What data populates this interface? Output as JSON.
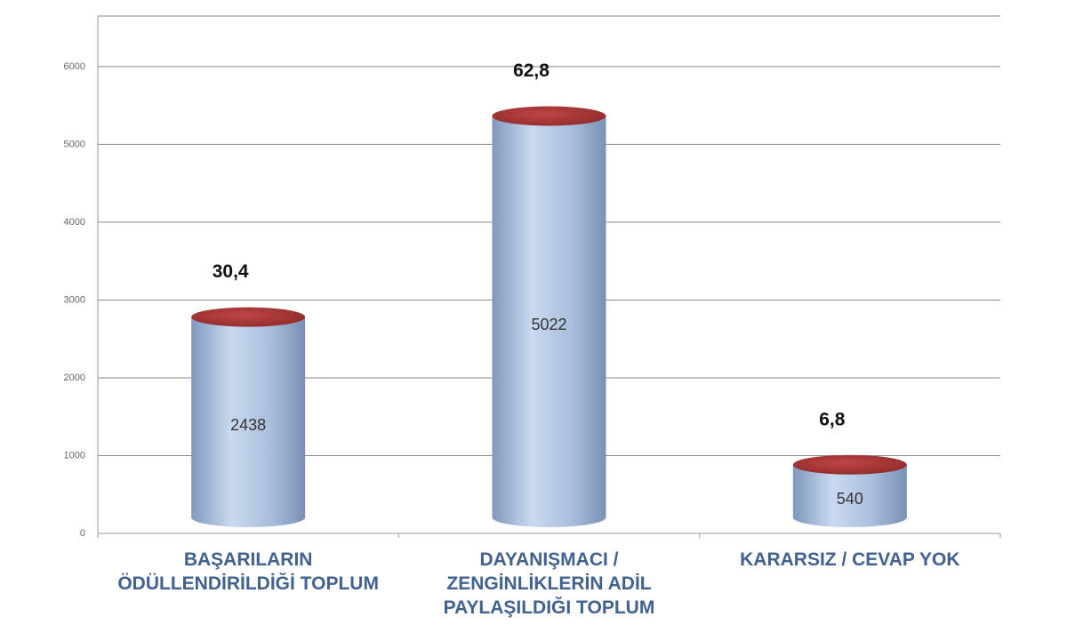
{
  "chart_data": {
    "type": "cylinder-bar",
    "categories": [
      "BAŞARILARIN ÖDÜLLENDİRİLDİĞİ TOPLUM",
      "DAYANIŞMACI / ZENGİNLİKLERİN ADİL PAYLAŞILDIĞI TOPLUM",
      "KARARSIZ / CEVAP YOK"
    ],
    "values": [
      2438,
      5022,
      540
    ],
    "shares": [
      30.4,
      62.8,
      6.8
    ],
    "share_labels": [
      "30,4",
      "62,8",
      "6,8"
    ],
    "color": "#a9bedc",
    "top_color": "#a83434",
    "ylim": [
      0,
      6650
    ],
    "yticks": [
      0,
      1000,
      2000,
      3000,
      4000,
      5000,
      6000
    ],
    "grid": true
  }
}
